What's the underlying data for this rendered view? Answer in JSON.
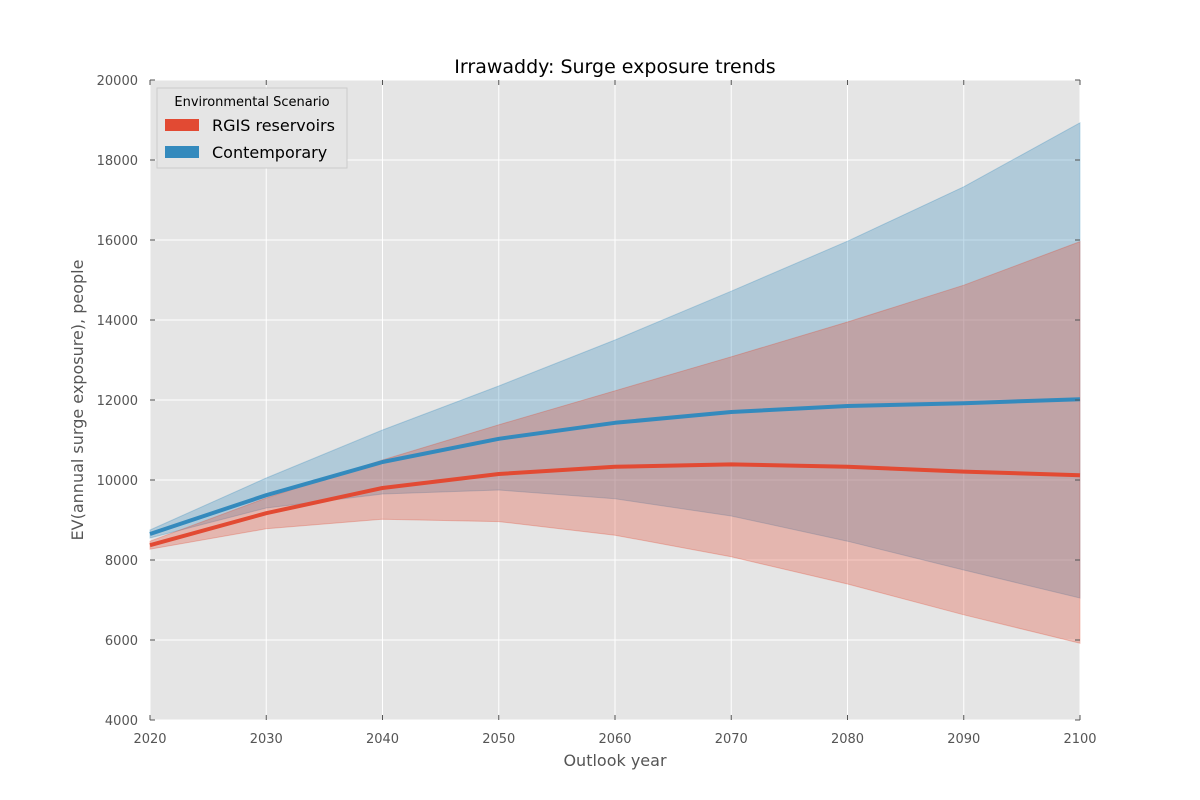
{
  "chart_data": {
    "type": "line",
    "title": "Irrawaddy: Surge exposure trends",
    "xlabel": "Outlook year",
    "ylabel": "EV(annual surge exposure), people",
    "xlim": [
      2020,
      2100
    ],
    "ylim": [
      4000,
      20000
    ],
    "x_ticks": [
      2020,
      2030,
      2040,
      2050,
      2060,
      2070,
      2080,
      2090,
      2100
    ],
    "y_ticks": [
      4000,
      6000,
      8000,
      10000,
      12000,
      14000,
      16000,
      18000,
      20000
    ],
    "grid": true,
    "legend": {
      "title": "Environmental Scenario",
      "position": "top-left"
    },
    "x": [
      2020,
      2030,
      2040,
      2050,
      2060,
      2070,
      2080,
      2090,
      2100
    ],
    "series": [
      {
        "name": "Contemporary",
        "color": "#348ABD",
        "band_color": "#A8C8DC",
        "values": [
          8650,
          9620,
          10450,
          11030,
          11430,
          11700,
          11850,
          11920,
          12020
        ],
        "lower": [
          8550,
          9300,
          9650,
          9750,
          9530,
          9100,
          8470,
          7750,
          7050
        ],
        "upper": [
          8750,
          10050,
          11250,
          12350,
          13500,
          14720,
          15970,
          17330,
          18930
        ]
      },
      {
        "name": "RGIS reservoirs",
        "color": "#E24A33",
        "band_color": "#E6B0AA",
        "values": [
          8370,
          9170,
          9800,
          10150,
          10330,
          10390,
          10330,
          10210,
          10120
        ],
        "lower": [
          8270,
          8780,
          9020,
          8960,
          8620,
          8080,
          7400,
          6630,
          5920
        ],
        "upper": [
          8470,
          9550,
          10500,
          11380,
          12230,
          13080,
          13950,
          14870,
          15960
        ]
      }
    ],
    "legend_order": [
      "RGIS reservoirs",
      "Contemporary"
    ]
  }
}
